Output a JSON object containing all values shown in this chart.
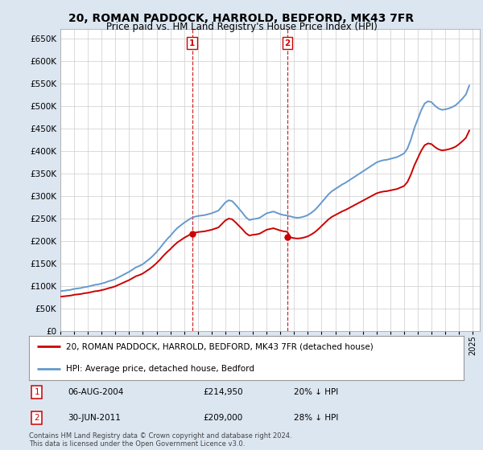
{
  "title": "20, ROMAN PADDOCK, HARROLD, BEDFORD, MK43 7FR",
  "subtitle": "Price paid vs. HM Land Registry's House Price Index (HPI)",
  "legend_line1": "20, ROMAN PADDOCK, HARROLD, BEDFORD, MK43 7FR (detached house)",
  "legend_line2": "HPI: Average price, detached house, Bedford",
  "footer": "Contains HM Land Registry data © Crown copyright and database right 2024.\nThis data is licensed under the Open Government Licence v3.0.",
  "annotation1_date": "06-AUG-2004",
  "annotation1_price": "£214,950",
  "annotation1_hpi": "20% ↓ HPI",
  "annotation2_date": "30-JUN-2011",
  "annotation2_price": "£209,000",
  "annotation2_hpi": "28% ↓ HPI",
  "property_color": "#cc0000",
  "hpi_color": "#6699cc",
  "background_color": "#dce6f1",
  "plot_bg_color": "#ffffff",
  "ylim": [
    0,
    670000
  ],
  "yticks": [
    0,
    50000,
    100000,
    150000,
    200000,
    250000,
    300000,
    350000,
    400000,
    450000,
    500000,
    550000,
    600000,
    650000
  ],
  "hpi_x_detail": [
    1995.0,
    1995.25,
    1995.5,
    1995.75,
    1996.0,
    1996.25,
    1996.5,
    1996.75,
    1997.0,
    1997.25,
    1997.5,
    1997.75,
    1998.0,
    1998.25,
    1998.5,
    1998.75,
    1999.0,
    1999.25,
    1999.5,
    1999.75,
    2000.0,
    2000.25,
    2000.5,
    2000.75,
    2001.0,
    2001.25,
    2001.5,
    2001.75,
    2002.0,
    2002.25,
    2002.5,
    2002.75,
    2003.0,
    2003.25,
    2003.5,
    2003.75,
    2004.0,
    2004.25,
    2004.5,
    2004.75,
    2005.0,
    2005.25,
    2005.5,
    2005.75,
    2006.0,
    2006.25,
    2006.5,
    2006.75,
    2007.0,
    2007.25,
    2007.5,
    2007.75,
    2008.0,
    2008.25,
    2008.5,
    2008.75,
    2009.0,
    2009.25,
    2009.5,
    2009.75,
    2010.0,
    2010.25,
    2010.5,
    2010.75,
    2011.0,
    2011.25,
    2011.5,
    2011.75,
    2012.0,
    2012.25,
    2012.5,
    2012.75,
    2013.0,
    2013.25,
    2013.5,
    2013.75,
    2014.0,
    2014.25,
    2014.5,
    2014.75,
    2015.0,
    2015.25,
    2015.5,
    2015.75,
    2016.0,
    2016.25,
    2016.5,
    2016.75,
    2017.0,
    2017.25,
    2017.5,
    2017.75,
    2018.0,
    2018.25,
    2018.5,
    2018.75,
    2019.0,
    2019.25,
    2019.5,
    2019.75,
    2020.0,
    2020.25,
    2020.5,
    2020.75,
    2021.0,
    2021.25,
    2021.5,
    2021.75,
    2022.0,
    2022.25,
    2022.5,
    2022.75,
    2023.0,
    2023.25,
    2023.5,
    2023.75,
    2024.0,
    2024.25,
    2024.5,
    2024.75
  ],
  "hpi_v_detail": [
    88000,
    89000,
    90000,
    91000,
    93000,
    94000,
    95000,
    97000,
    98000,
    100000,
    102000,
    103000,
    105000,
    107000,
    110000,
    112000,
    115000,
    119000,
    123000,
    127000,
    131000,
    136000,
    141000,
    144000,
    148000,
    154000,
    160000,
    167000,
    175000,
    184000,
    194000,
    203000,
    211000,
    220000,
    228000,
    234000,
    240000,
    245000,
    250000,
    253000,
    255000,
    256000,
    257000,
    259000,
    261000,
    264000,
    267000,
    276000,
    285000,
    290000,
    288000,
    280000,
    271000,
    262000,
    252000,
    246000,
    248000,
    249000,
    251000,
    256000,
    261000,
    263000,
    265000,
    262000,
    259000,
    257000,
    256000,
    254000,
    252000,
    251000,
    252000,
    254000,
    257000,
    262000,
    268000,
    276000,
    285000,
    294000,
    303000,
    310000,
    315000,
    320000,
    325000,
    329000,
    334000,
    339000,
    344000,
    349000,
    354000,
    359000,
    364000,
    369000,
    374000,
    377000,
    379000,
    380000,
    382000,
    384000,
    386000,
    390000,
    394000,
    405000,
    425000,
    450000,
    470000,
    490000,
    505000,
    510000,
    508000,
    500000,
    494000,
    491000,
    492000,
    494000,
    497000,
    501000,
    508000,
    516000,
    525000,
    545000
  ],
  "sale1_x": 2004.583,
  "sale1_y": 214950,
  "sale2_x": 2011.5,
  "sale2_y": 209000,
  "xtick_years": [
    1995,
    1996,
    1997,
    1998,
    1999,
    2000,
    2001,
    2002,
    2003,
    2004,
    2005,
    2006,
    2007,
    2008,
    2009,
    2010,
    2011,
    2012,
    2013,
    2014,
    2015,
    2016,
    2017,
    2018,
    2019,
    2020,
    2021,
    2022,
    2023,
    2024,
    2025
  ]
}
